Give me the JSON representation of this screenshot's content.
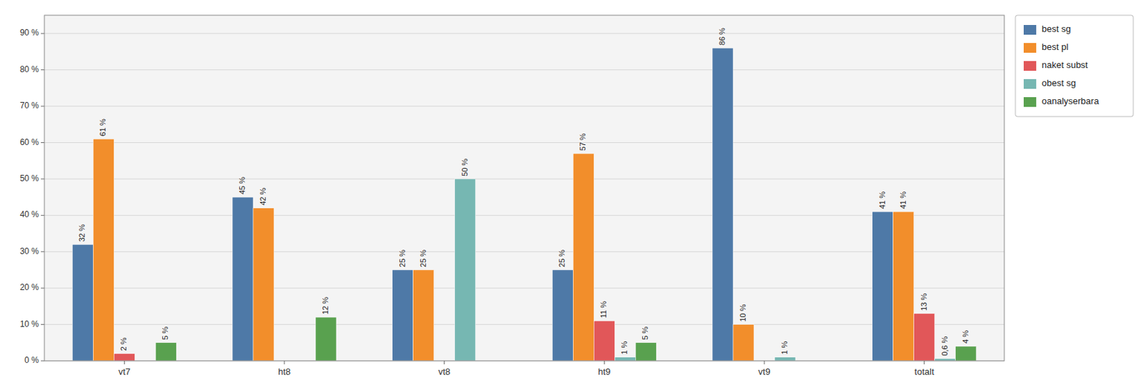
{
  "chart_data": {
    "type": "bar",
    "categories": [
      "vt7",
      "ht8",
      "vt8",
      "ht9",
      "vt9",
      "totalt"
    ],
    "series": [
      {
        "name": "best sg",
        "color": "#4e79a7",
        "values": [
          32,
          45,
          25,
          25,
          86,
          41
        ],
        "value_labels": [
          "32 %",
          "45 %",
          "25 %",
          "25 %",
          "86 %",
          "41 %"
        ]
      },
      {
        "name": "best pl",
        "color": "#f28e2b",
        "values": [
          61,
          42,
          25,
          57,
          10,
          41
        ],
        "value_labels": [
          "61 %",
          "42 %",
          "25 %",
          "57 %",
          "10 %",
          "41 %"
        ]
      },
      {
        "name": "naket subst",
        "color": "#e15759",
        "values": [
          2,
          0,
          0,
          11,
          0,
          13
        ],
        "value_labels": [
          "2 %",
          null,
          null,
          "11 %",
          null,
          "13 %"
        ]
      },
      {
        "name": "obest sg",
        "color": "#76b7b2",
        "values": [
          0,
          0,
          50,
          1,
          1,
          0.6
        ],
        "value_labels": [
          null,
          null,
          "50 %",
          "1 %",
          "1 %",
          "0,6 %"
        ]
      },
      {
        "name": "oanalyserbara",
        "color": "#59a14f",
        "values": [
          5,
          12,
          0,
          5,
          0,
          4
        ],
        "value_labels": [
          "5 %",
          "12 %",
          null,
          "5 %",
          null,
          "4 %"
        ]
      }
    ],
    "ylim": [
      0,
      95
    ],
    "yticks": [
      {
        "value": 0,
        "label": "0 %"
      },
      {
        "value": 10,
        "label": "10 %"
      },
      {
        "value": 20,
        "label": "20 %"
      },
      {
        "value": 30,
        "label": "30 %"
      },
      {
        "value": 40,
        "label": "40 %"
      },
      {
        "value": 50,
        "label": "50 %"
      },
      {
        "value": 60,
        "label": "60 %"
      },
      {
        "value": 70,
        "label": "70 %"
      },
      {
        "value": 80,
        "label": "80 %"
      },
      {
        "value": 90,
        "label": "90 %"
      }
    ],
    "grid": true,
    "legend": "right",
    "data_labels": true
  }
}
